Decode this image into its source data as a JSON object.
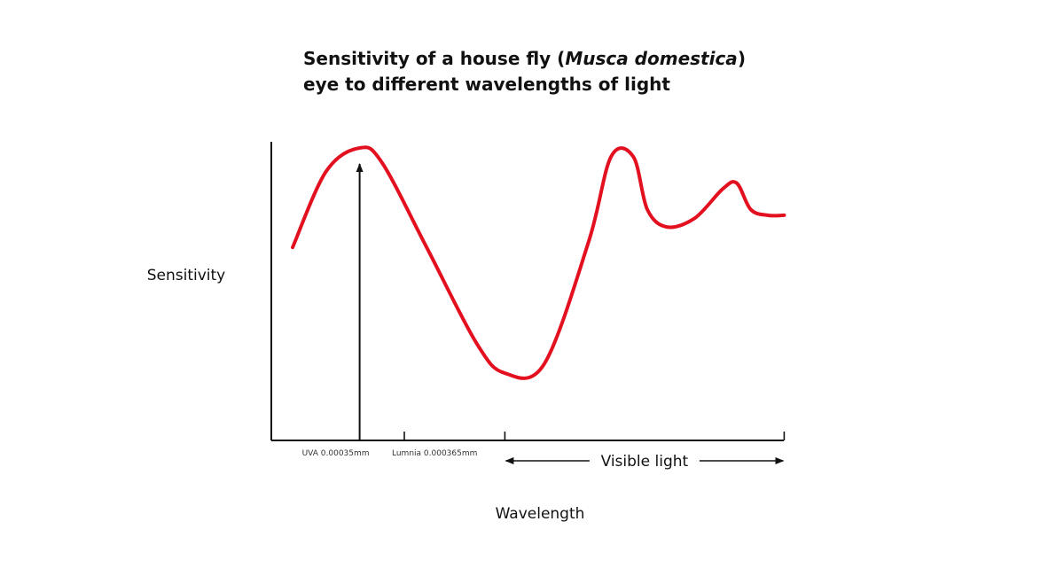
{
  "chart_data": {
    "type": "line",
    "title": {
      "prefix": "Sensitivity of a house fly (",
      "italic": "Musca domestica",
      "suffix": ")",
      "line2": "eye to different wavelengths of light"
    },
    "xlabel": "Wavelength",
    "ylabel": "Sensitivity",
    "grid": false,
    "legend": "none",
    "series": [
      {
        "color": "#e3101f",
        "points": [
          [
            0.0,
            0.66
          ],
          [
            0.06,
            0.92
          ],
          [
            0.12,
            1.0
          ],
          [
            0.16,
            0.95
          ],
          [
            0.24,
            0.66
          ],
          [
            0.33,
            0.33
          ],
          [
            0.38,
            0.23
          ],
          [
            0.45,
            0.26
          ],
          [
            0.53,
            0.68
          ],
          [
            0.57,
            0.97
          ],
          [
            0.61,
            0.97
          ],
          [
            0.635,
            0.79
          ],
          [
            0.67,
            0.73
          ],
          [
            0.72,
            0.76
          ],
          [
            0.77,
            0.86
          ],
          [
            0.795,
            0.88
          ],
          [
            0.82,
            0.79
          ],
          [
            0.85,
            0.77
          ],
          [
            0.88,
            0.77
          ]
        ]
      }
    ],
    "markers": [
      {
        "label": "UVA 0.00035mm",
        "x": 0.12,
        "arrow": true
      },
      {
        "label": "Lumnia 0.000365mm",
        "x": 0.2,
        "arrow": false
      }
    ],
    "band": {
      "label": "Visible light",
      "x_start": 0.38,
      "x_end": 0.88
    },
    "colors": {
      "curve": "#e3101f",
      "axis": "#111111"
    }
  }
}
